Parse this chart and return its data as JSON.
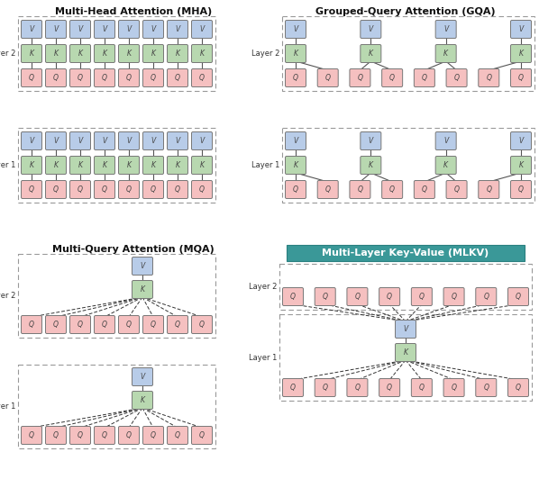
{
  "title_mha": "Multi-Head Attention (MHA)",
  "title_gqa": "Grouped-Query Attention (GQA)",
  "title_mqa": "Multi-Query Attention (MQA)",
  "title_mlkv": "Multi-Layer Key-Value (MLKV)",
  "color_v": "#b8cce8",
  "color_k": "#b8d8b0",
  "color_q": "#f5c0c0",
  "color_mlkv_title_bg": "#3a9898",
  "color_mlkv_title_text": "#ffffff",
  "background": "#ffffff"
}
